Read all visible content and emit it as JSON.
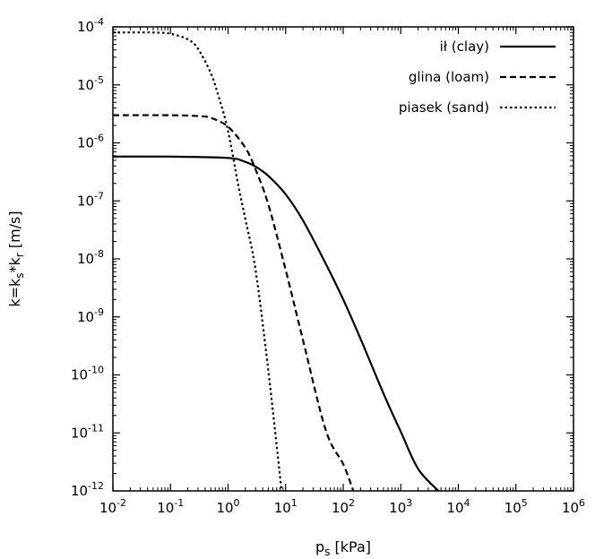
{
  "chart_data": {
    "type": "line",
    "x_scale": "log",
    "y_scale": "log",
    "xlim": [
      0.01,
      1000000
    ],
    "ylim": [
      1e-12,
      0.0001
    ],
    "x_ticks": [
      {
        "base": "10",
        "exp": "-2"
      },
      {
        "base": "10",
        "exp": "-1"
      },
      {
        "base": "10",
        "exp": "0"
      },
      {
        "base": "10",
        "exp": "1"
      },
      {
        "base": "10",
        "exp": "2"
      },
      {
        "base": "10",
        "exp": "3"
      },
      {
        "base": "10",
        "exp": "4"
      },
      {
        "base": "10",
        "exp": "5"
      },
      {
        "base": "10",
        "exp": "6"
      }
    ],
    "y_ticks": [
      {
        "base": "10",
        "exp": "-12"
      },
      {
        "base": "10",
        "exp": "-11"
      },
      {
        "base": "10",
        "exp": "-10"
      },
      {
        "base": "10",
        "exp": "-9"
      },
      {
        "base": "10",
        "exp": "-8"
      },
      {
        "base": "10",
        "exp": "-7"
      },
      {
        "base": "10",
        "exp": "-6"
      },
      {
        "base": "10",
        "exp": "-5"
      },
      {
        "base": "10",
        "exp": "-4"
      }
    ],
    "xlabel": {
      "main": "p",
      "sub": "s",
      "rest": " [kPa]"
    },
    "ylabel": {
      "prefix": "k=k",
      "sub1": "s",
      "mid": "*k",
      "sub2": "r",
      "suffix": " [m/s]"
    },
    "legend_position": "top-right",
    "grid": false,
    "series": [
      {
        "name": "ił (clay)",
        "style": "solid",
        "ks": 5.8e-07,
        "x": [
          0.01,
          0.1,
          1,
          2,
          3,
          5,
          10,
          20,
          50,
          100,
          200,
          500,
          1000,
          2000,
          4500
        ],
        "y": [
          5.8e-07,
          5.8e-07,
          5.5e-07,
          4.7e-07,
          3.9e-07,
          2.7e-07,
          1.3e-07,
          4.6e-08,
          8.2e-09,
          2e-09,
          4.2e-10,
          4.8e-11,
          1.05e-11,
          2.4e-12,
          1e-12
        ]
      },
      {
        "name": "glina (loam)",
        "style": "dashed",
        "ks": 3e-06,
        "x": [
          0.01,
          0.1,
          0.3,
          0.5,
          1,
          2,
          3,
          5,
          10,
          20,
          50,
          100,
          150
        ],
        "y": [
          3e-06,
          3e-06,
          2.9e-06,
          2.7e-06,
          1.9e-06,
          8.2e-07,
          3.5e-07,
          8.7e-08,
          6.5e-09,
          4e-10,
          1.1e-11,
          2.9e-12,
          1e-12
        ]
      },
      {
        "name": "piasek (sand)",
        "style": "dotted",
        "ks": 8e-05,
        "x": [
          0.01,
          0.05,
          0.1,
          0.2,
          0.3,
          0.5,
          0.7,
          1,
          1.5,
          2,
          3,
          5,
          8.5
        ],
        "y": [
          8e-05,
          8e-05,
          7.6e-05,
          6.1e-05,
          4.2e-05,
          1.6e-05,
          5.9e-06,
          1.6e-06,
          1.9e-07,
          4.8e-08,
          6.5e-09,
          1.2e-10,
          1e-12
        ]
      }
    ]
  }
}
